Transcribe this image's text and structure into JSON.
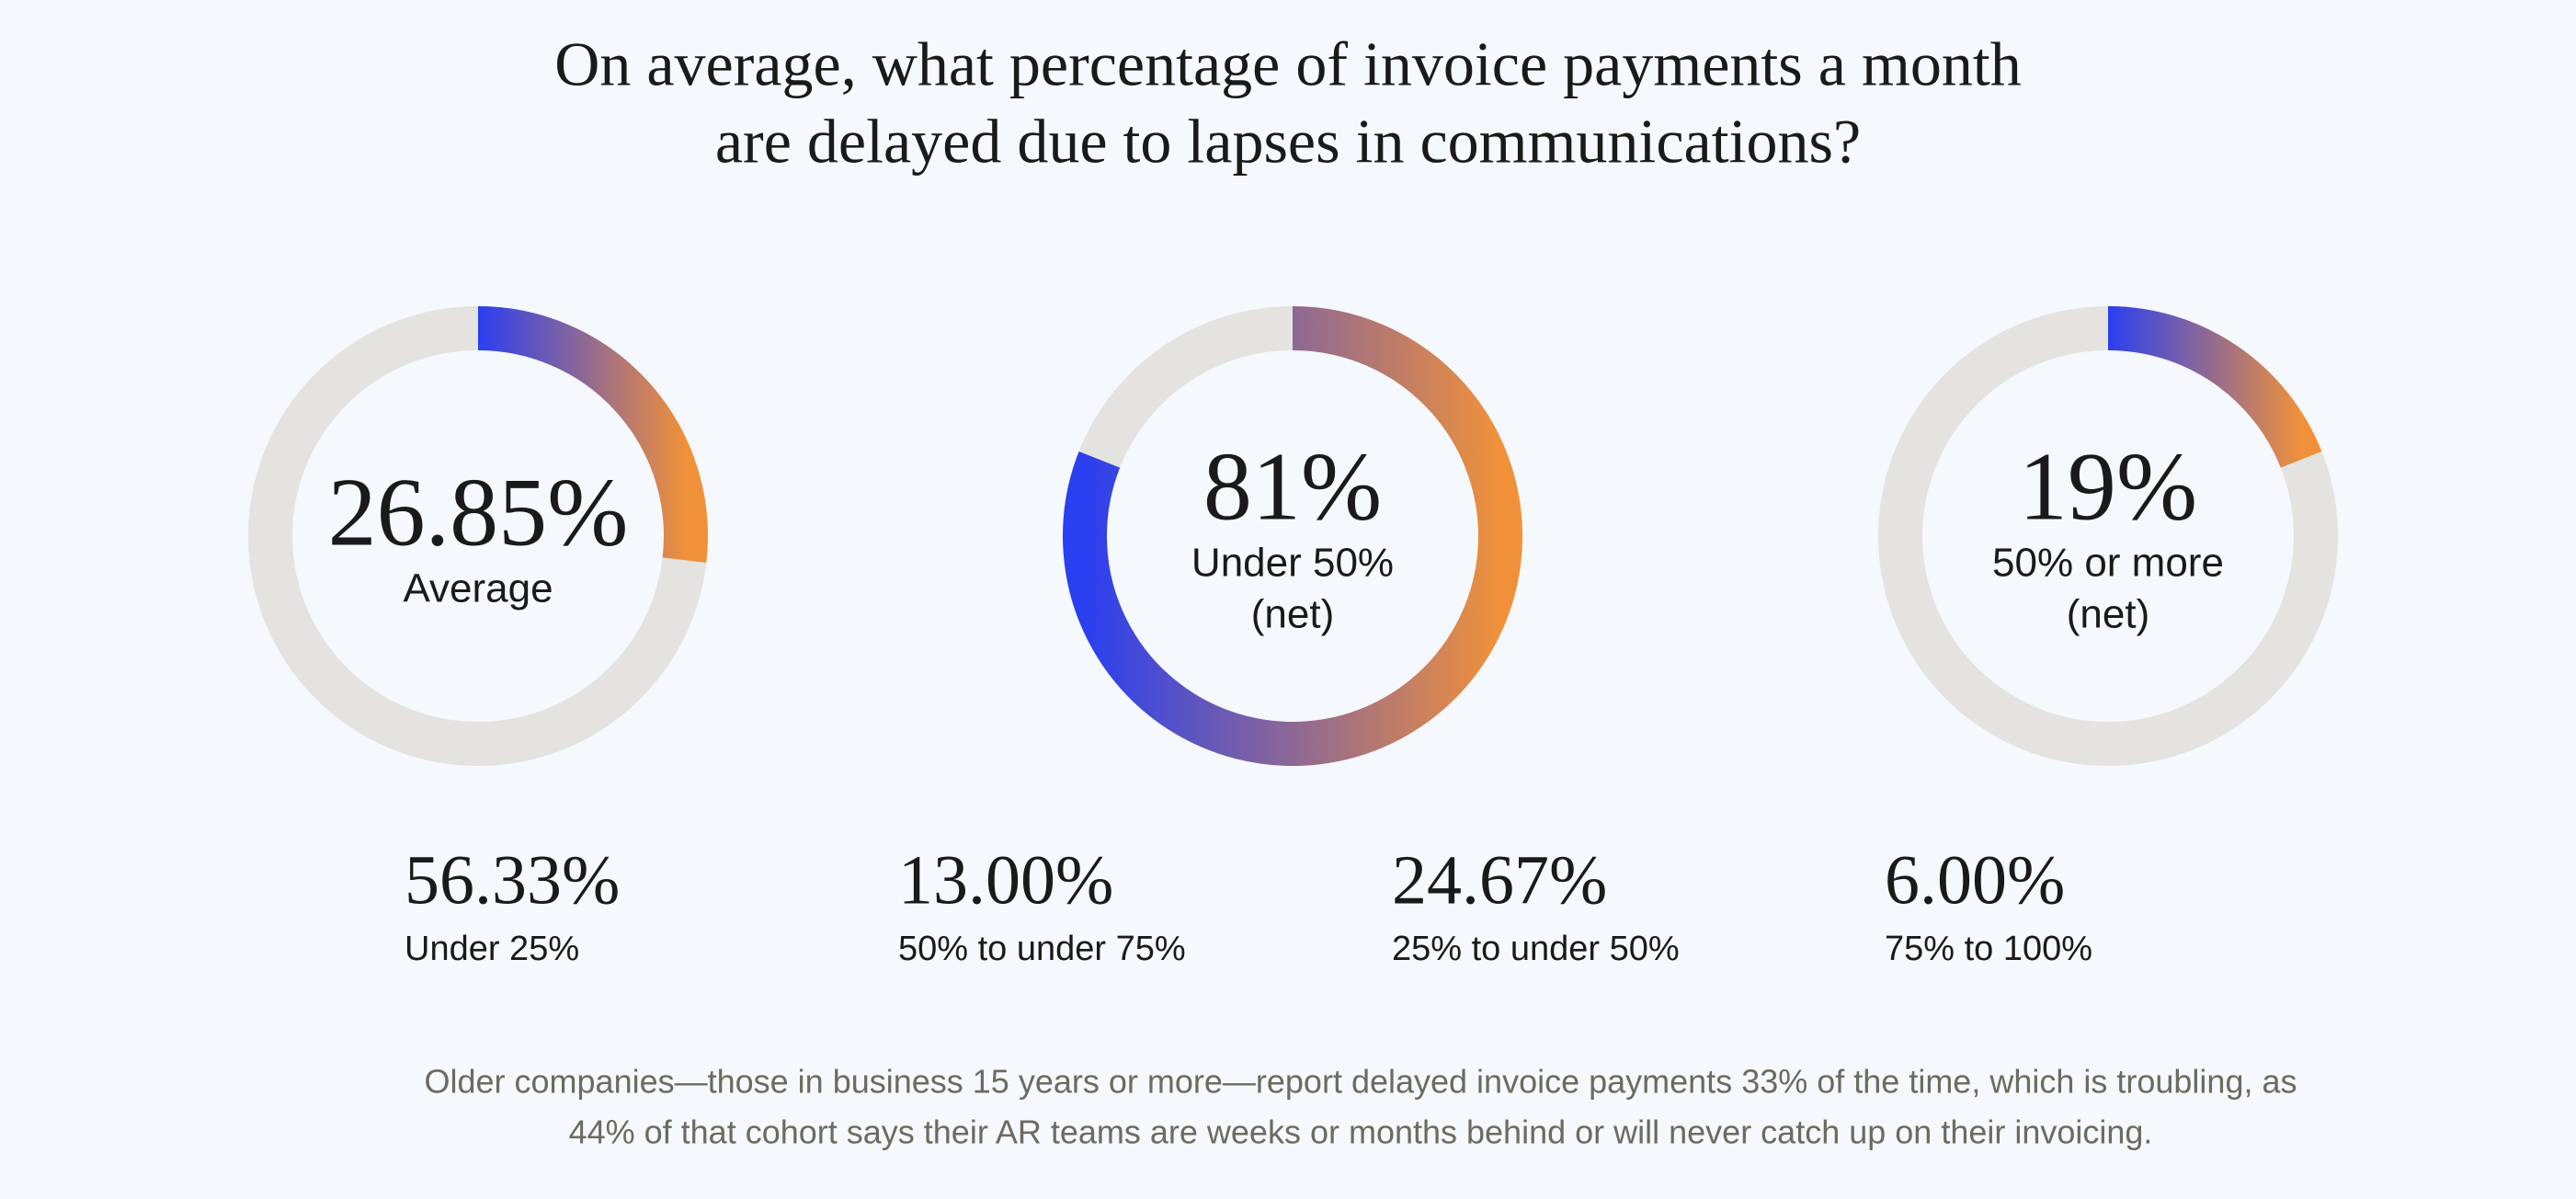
{
  "title": [
    "On average, what percentage of invoice payments a month",
    "are delayed due to lapses in communications?"
  ],
  "chart_data": [
    {
      "type": "donut",
      "values": [
        26.85
      ],
      "value_labels": [
        "26.85%"
      ],
      "label": [
        "Average"
      ],
      "ylim": [
        0,
        100
      ],
      "colors": [
        "#2a3ff0",
        "#f0913a"
      ],
      "track_color": "#e5e3df"
    },
    {
      "type": "donut",
      "values": [
        81
      ],
      "value_labels": [
        "81%"
      ],
      "label": [
        "Under 50%",
        "(net)"
      ],
      "ylim": [
        0,
        100
      ],
      "colors": [
        "#2a3ff0",
        "#f0913a"
      ],
      "track_color": "#e5e3df"
    },
    {
      "type": "donut",
      "values": [
        19
      ],
      "value_labels": [
        "19%"
      ],
      "label": [
        "50% or more",
        "(net)"
      ],
      "ylim": [
        0,
        100
      ],
      "colors": [
        "#2a3ff0",
        "#f0913a"
      ],
      "track_color": "#e5e3df"
    }
  ],
  "stats": [
    {
      "value": "56.33%",
      "label": "Under 25%"
    },
    {
      "value": "13.00%",
      "label": "50% to under 75%"
    },
    {
      "value": "24.67%",
      "label": "25% to under 50%"
    },
    {
      "value": "6.00%",
      "label": "75% to 100%"
    }
  ],
  "footnote": [
    "Older companies—those in business 15 years or more—report delayed invoice payments 33% of the time, which is troubling, as",
    "44% of that cohort says their AR teams are weeks or months behind or will never catch up on their invoicing."
  ]
}
